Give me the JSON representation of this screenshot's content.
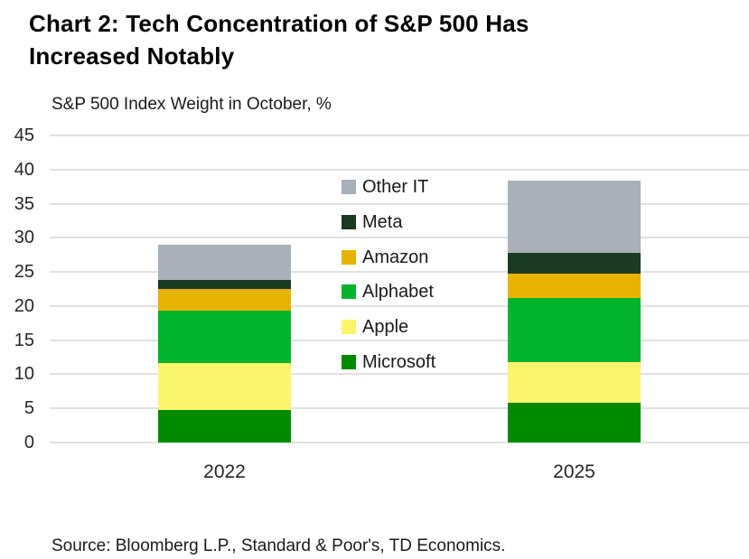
{
  "header": {
    "title_lines": [
      "Chart 2: Tech Concentration of S&P 500 Has",
      "Increased Notably"
    ]
  },
  "chart": {
    "source": "Source: Bloomberg L.P., Standard & Poor's, TD Economics."
  },
  "chart_data": {
    "type": "bar",
    "stacked": true,
    "title": "Chart 2: Tech Concentration of S&P 500 Has Increased Notably",
    "ylabel": "S&P 500 Index Weight in October, %",
    "categories": [
      "2022",
      "2025"
    ],
    "series": [
      {
        "name": "Microsoft",
        "color": "#008a00",
        "values": [
          4.8,
          5.8
        ]
      },
      {
        "name": "Apple",
        "color": "#fbf46d",
        "values": [
          6.8,
          6.0
        ]
      },
      {
        "name": "Alphabet",
        "color": "#04b42c",
        "values": [
          7.7,
          9.4
        ]
      },
      {
        "name": "Amazon",
        "color": "#e6b400",
        "values": [
          3.2,
          3.6
        ]
      },
      {
        "name": "Meta",
        "color": "#1a3a24",
        "values": [
          1.3,
          3.0
        ]
      },
      {
        "name": "Other IT",
        "color": "#a9b0b8",
        "values": [
          5.2,
          10.6
        ]
      }
    ],
    "totals": [
      29.0,
      38.4
    ],
    "ylim": [
      0,
      45
    ],
    "ytick_step": 5,
    "yticks": [
      0,
      5,
      10,
      15,
      20,
      25,
      30,
      35,
      40,
      45
    ],
    "grid": true,
    "legend_position": "center-right",
    "legend_order": [
      "Other IT",
      "Meta",
      "Amazon",
      "Alphabet",
      "Apple",
      "Microsoft"
    ],
    "grid_color": "#e1e1e1"
  }
}
